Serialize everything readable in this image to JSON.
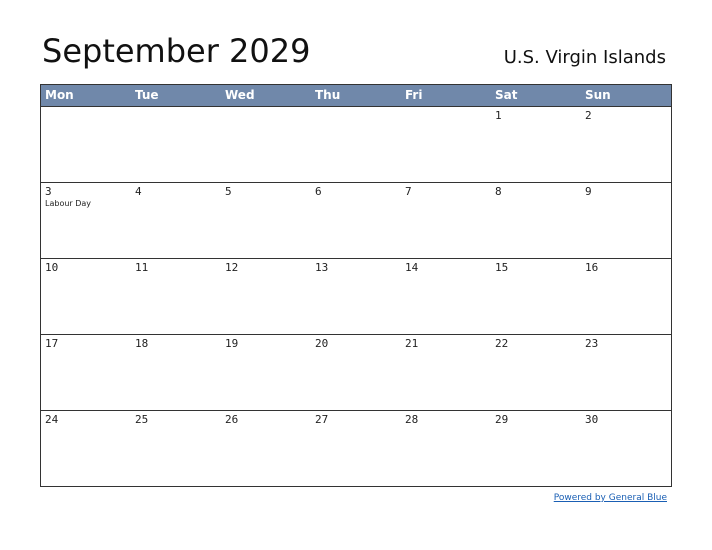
{
  "header": {
    "title": "September 2029",
    "region": "U.S. Virgin Islands"
  },
  "calendar": {
    "weekdays": [
      "Mon",
      "Tue",
      "Wed",
      "Thu",
      "Fri",
      "Sat",
      "Sun"
    ],
    "weeks": [
      [
        null,
        null,
        null,
        null,
        null,
        {
          "day": 1
        },
        {
          "day": 2
        }
      ],
      [
        {
          "day": 3,
          "holiday": "Labour Day"
        },
        {
          "day": 4
        },
        {
          "day": 5
        },
        {
          "day": 6
        },
        {
          "day": 7
        },
        {
          "day": 8
        },
        {
          "day": 9
        }
      ],
      [
        {
          "day": 10
        },
        {
          "day": 11
        },
        {
          "day": 12
        },
        {
          "day": 13
        },
        {
          "day": 14
        },
        {
          "day": 15
        },
        {
          "day": 16
        }
      ],
      [
        {
          "day": 17
        },
        {
          "day": 18
        },
        {
          "day": 19
        },
        {
          "day": 20
        },
        {
          "day": 21
        },
        {
          "day": 22
        },
        {
          "day": 23
        }
      ],
      [
        {
          "day": 24
        },
        {
          "day": 25
        },
        {
          "day": 26
        },
        {
          "day": 27
        },
        {
          "day": 28
        },
        {
          "day": 29
        },
        {
          "day": 30
        }
      ]
    ]
  },
  "footer": {
    "link": "Powered by General Blue"
  }
}
